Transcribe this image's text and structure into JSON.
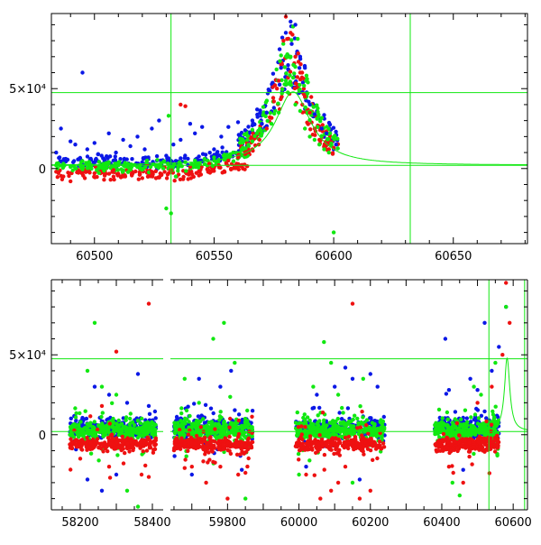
{
  "colors": {
    "blue": "#0b18e6",
    "red": "#ee1111",
    "green": "#11e811",
    "frame": "#000000"
  },
  "chart_data": [
    {
      "type": "scatter",
      "panel": "top",
      "title": "",
      "xlabel": "",
      "ylabel": "",
      "xlim": [
        60482,
        60681
      ],
      "ylim": [
        -47000,
        97000
      ],
      "x_ticks": [
        {
          "value": 60500,
          "label": "60500"
        },
        {
          "value": 60550,
          "label": "60550"
        },
        {
          "value": 60600,
          "label": "60600"
        },
        {
          "value": 60650,
          "label": "60650"
        }
      ],
      "y_ticks": [
        {
          "value": 0,
          "label": "0"
        },
        {
          "value": 50000,
          "label": "5×10⁴"
        }
      ],
      "ref_lines": {
        "vertical": [
          60532,
          60632
        ],
        "horizontal": [
          47500,
          2000
        ]
      },
      "model_curve": {
        "type": "lorentzian-like peak",
        "peak_x": 60583,
        "peak_y": 48000,
        "baseline": 2000
      },
      "series": [
        {
          "color": "blue",
          "points": [
            [
              60484,
              10000
            ],
            [
              60486,
              25000
            ],
            [
              60488,
              6000
            ],
            [
              60490,
              17000
            ],
            [
              60492,
              15000
            ],
            [
              60495,
              60000
            ],
            [
              60497,
              12000
            ],
            [
              60500,
              16000
            ],
            [
              60503,
              8000
            ],
            [
              60506,
              22000
            ],
            [
              60509,
              10000
            ],
            [
              60512,
              18000
            ],
            [
              60515,
              14000
            ],
            [
              60518,
              20000
            ],
            [
              60521,
              12000
            ],
            [
              60524,
              25000
            ],
            [
              60527,
              30000
            ],
            [
              60530,
              8000
            ],
            [
              60533,
              15000
            ],
            [
              60536,
              18000
            ],
            [
              60540,
              28000
            ],
            [
              60542,
              22000
            ],
            [
              60545,
              26000
            ],
            [
              60550,
              12000
            ],
            [
              60553,
              20000
            ],
            [
              60556,
              26000
            ],
            [
              60560,
              29000
            ],
            [
              60563,
              24000
            ],
            [
              60566,
              30000
            ],
            [
              60568,
              37000
            ],
            [
              60570,
              28000
            ],
            [
              60572,
              35000
            ],
            [
              60575,
              38000
            ],
            [
              60578,
              63000
            ],
            [
              60580,
              85000
            ],
            [
              60582,
              92000
            ],
            [
              60584,
              90000
            ],
            [
              60586,
              70000
            ],
            [
              60588,
              63000
            ],
            [
              60590,
              40000
            ],
            [
              60592,
              34000
            ],
            [
              60595,
              25000
            ],
            [
              60597,
              22000
            ],
            [
              60600,
              12000
            ],
            [
              60601,
              15000
            ]
          ]
        },
        {
          "color": "red",
          "points": [
            [
              60484,
              -2000
            ],
            [
              60487,
              -5000
            ],
            [
              60490,
              -8000
            ],
            [
              60493,
              -2000
            ],
            [
              60496,
              -6000
            ],
            [
              60500,
              -3000
            ],
            [
              60504,
              -7000
            ],
            [
              60508,
              -1000
            ],
            [
              60512,
              -5000
            ],
            [
              60516,
              -3000
            ],
            [
              60520,
              -6000
            ],
            [
              60524,
              -2000
            ],
            [
              60528,
              -4000
            ],
            [
              60532,
              -1000
            ],
            [
              60536,
              40000
            ],
            [
              60538,
              39000
            ],
            [
              60540,
              1000
            ],
            [
              60544,
              -2000
            ],
            [
              60548,
              3000
            ],
            [
              60552,
              2000
            ],
            [
              60556,
              5000
            ],
            [
              60560,
              7000
            ],
            [
              60563,
              10000
            ],
            [
              60566,
              12000
            ],
            [
              60569,
              18000
            ],
            [
              60572,
              25000
            ],
            [
              60575,
              42000
            ],
            [
              60577,
              55000
            ],
            [
              60579,
              80000
            ],
            [
              60580,
              95000
            ],
            [
              60582,
              85000
            ],
            [
              60584,
              70000
            ],
            [
              60586,
              60000
            ],
            [
              60588,
              45000
            ],
            [
              60590,
              35000
            ],
            [
              60592,
              25000
            ],
            [
              60594,
              18000
            ],
            [
              60596,
              14000
            ],
            [
              60598,
              12000
            ],
            [
              60600,
              13000
            ]
          ]
        },
        {
          "color": "green",
          "points": [
            [
              60484,
              2000
            ],
            [
              60487,
              3000
            ],
            [
              60490,
              1000
            ],
            [
              60494,
              2000
            ],
            [
              60498,
              3000
            ],
            [
              60502,
              1000
            ],
            [
              60506,
              4000
            ],
            [
              60510,
              2000
            ],
            [
              60514,
              3000
            ],
            [
              60518,
              1000
            ],
            [
              60522,
              5000
            ],
            [
              60526,
              2000
            ],
            [
              60530,
              -25000
            ],
            [
              60531,
              33000
            ],
            [
              60532,
              -28000
            ],
            [
              60534,
              -5000
            ],
            [
              60538,
              4000
            ],
            [
              60542,
              5000
            ],
            [
              60546,
              6000
            ],
            [
              60550,
              7000
            ],
            [
              60554,
              8000
            ],
            [
              60558,
              10000
            ],
            [
              60562,
              13000
            ],
            [
              60566,
              17000
            ],
            [
              60570,
              22000
            ],
            [
              60574,
              28000
            ],
            [
              60577,
              35000
            ],
            [
              60580,
              55000
            ],
            [
              60582,
              70000
            ],
            [
              60584,
              40000
            ],
            [
              60586,
              36000
            ],
            [
              60588,
              25000
            ],
            [
              60590,
              20000
            ],
            [
              60592,
              18000
            ],
            [
              60594,
              15000
            ],
            [
              60596,
              12000
            ],
            [
              60598,
              10000
            ],
            [
              60600,
              -40000
            ]
          ]
        }
      ]
    },
    {
      "type": "scatter",
      "panel": "bottom",
      "title": "",
      "xlabel": "",
      "ylabel": "",
      "broken_axis": true,
      "segments": [
        {
          "xlim": [
            58120,
            58430
          ],
          "x_ticks": [
            {
              "value": 58200,
              "label": "58200"
            },
            {
              "value": 58400,
              "label": "58400"
            }
          ]
        },
        {
          "xlim": [
            59640,
            60640
          ],
          "x_ticks": [
            {
              "value": 59800,
              "label": "59800"
            },
            {
              "value": 60000,
              "label": "60000"
            },
            {
              "value": 60200,
              "label": "60200"
            },
            {
              "value": 60400,
              "label": "60400"
            },
            {
              "value": 60600,
              "label": "60600"
            }
          ]
        }
      ],
      "ylim": [
        -47000,
        97000
      ],
      "y_ticks": [
        {
          "value": 0,
          "label": "0"
        },
        {
          "value": 50000,
          "label": "5×10⁴"
        }
      ],
      "ref_lines": {
        "vertical": [
          60532,
          60632
        ],
        "horizontal": [
          47500,
          2000
        ]
      },
      "model_curve": {
        "peak_x": 60583,
        "peak_y": 48000,
        "baseline": 2000
      },
      "clusters": [
        {
          "x_range": [
            58170,
            58410
          ],
          "core_y": [
            -10000,
            12000
          ]
        },
        {
          "x_range": [
            59650,
            59870
          ],
          "core_y": [
            -10000,
            12000
          ]
        },
        {
          "x_range": [
            59990,
            60240
          ],
          "core_y": [
            -10000,
            12000
          ]
        },
        {
          "x_range": [
            60380,
            60560
          ],
          "core_y": [
            -8000,
            12000
          ]
        }
      ],
      "series": [
        {
          "color": "blue",
          "points": [
            [
              58220,
              -28000
            ],
            [
              58240,
              30000
            ],
            [
              58260,
              -35000
            ],
            [
              58280,
              25000
            ],
            [
              58300,
              -25000
            ],
            [
              58330,
              20000
            ],
            [
              58360,
              38000
            ],
            [
              58390,
              18000
            ],
            [
              59700,
              -25000
            ],
            [
              59720,
              35000
            ],
            [
              59780,
              30000
            ],
            [
              59810,
              40000
            ],
            [
              59840,
              -22000
            ],
            [
              59870,
              15000
            ],
            [
              60020,
              -20000
            ],
            [
              60050,
              25000
            ],
            [
              60100,
              30000
            ],
            [
              60130,
              42000
            ],
            [
              60150,
              35000
            ],
            [
              60170,
              -28000
            ],
            [
              60200,
              38000
            ],
            [
              60220,
              30000
            ],
            [
              60410,
              60000
            ],
            [
              60420,
              28000
            ],
            [
              60460,
              -22000
            ],
            [
              60480,
              35000
            ],
            [
              60500,
              28000
            ],
            [
              60520,
              70000
            ],
            [
              60540,
              40000
            ],
            [
              60560,
              55000
            ],
            [
              60580,
              80000
            ]
          ]
        },
        {
          "color": "red",
          "points": [
            [
              58200,
              -15000
            ],
            [
              58260,
              18000
            ],
            [
              58280,
              -20000
            ],
            [
              58300,
              52000
            ],
            [
              58320,
              -18000
            ],
            [
              58370,
              -25000
            ],
            [
              58390,
              82000
            ],
            [
              59700,
              -20000
            ],
            [
              59740,
              -30000
            ],
            [
              59780,
              -20000
            ],
            [
              59800,
              -40000
            ],
            [
              59830,
              -25000
            ],
            [
              60020,
              -25000
            ],
            [
              60060,
              -40000
            ],
            [
              60090,
              -35000
            ],
            [
              60110,
              -30000
            ],
            [
              60130,
              -20000
            ],
            [
              60150,
              82000
            ],
            [
              60170,
              -40000
            ],
            [
              60200,
              -35000
            ],
            [
              60420,
              -20000
            ],
            [
              60460,
              -30000
            ],
            [
              60500,
              20000
            ],
            [
              60540,
              30000
            ],
            [
              60570,
              50000
            ],
            [
              60580,
              95000
            ],
            [
              60590,
              70000
            ]
          ]
        },
        {
          "color": "green",
          "points": [
            [
              58220,
              40000
            ],
            [
              58240,
              70000
            ],
            [
              58260,
              30000
            ],
            [
              58300,
              25000
            ],
            [
              58330,
              -35000
            ],
            [
              58360,
              -45000
            ],
            [
              59680,
              35000
            ],
            [
              59720,
              20000
            ],
            [
              59760,
              60000
            ],
            [
              59790,
              70000
            ],
            [
              59820,
              45000
            ],
            [
              59850,
              -40000
            ],
            [
              60000,
              -25000
            ],
            [
              60040,
              30000
            ],
            [
              60070,
              58000
            ],
            [
              60090,
              45000
            ],
            [
              60110,
              25000
            ],
            [
              60150,
              -30000
            ],
            [
              60180,
              35000
            ],
            [
              60430,
              -30000
            ],
            [
              60450,
              -38000
            ],
            [
              60490,
              30000
            ],
            [
              60510,
              25000
            ],
            [
              60550,
              45000
            ],
            [
              60580,
              80000
            ]
          ]
        }
      ]
    }
  ]
}
